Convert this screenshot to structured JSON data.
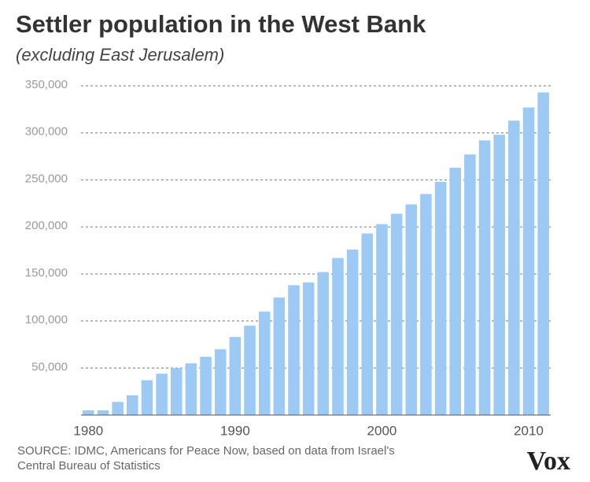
{
  "chart_data": {
    "type": "bar",
    "title": "Settler population in the West Bank",
    "subtitle": "(excluding East Jerusalem)",
    "source": [
      "SOURCE: IDMC, Americans for Peace Now, based on data from Israel's",
      "Central  Bureau of Statistics"
    ],
    "logo": "Vox",
    "x": [
      1980,
      1981,
      1982,
      1983,
      1984,
      1985,
      1986,
      1987,
      1988,
      1989,
      1990,
      1991,
      1992,
      1993,
      1994,
      1995,
      1996,
      1997,
      1998,
      1999,
      2000,
      2001,
      2002,
      2003,
      2004,
      2005,
      2006,
      2007,
      2008,
      2009,
      2010,
      2011
    ],
    "values": [
      5000,
      5000,
      14000,
      21000,
      37000,
      44000,
      50000,
      55000,
      62000,
      70000,
      83000,
      95000,
      110000,
      125000,
      138000,
      141000,
      152000,
      167000,
      176000,
      193000,
      203000,
      214000,
      224000,
      235000,
      248000,
      263000,
      277000,
      292000,
      298000,
      313000,
      327000,
      343000
    ],
    "color": "#9ccaf4",
    "xlim": [
      1979.5,
      2011.5
    ],
    "xticks": [
      1980,
      1990,
      2000,
      2010
    ],
    "ylim": [
      0,
      350000
    ],
    "yticks": [
      {
        "value": 50000,
        "label": "50,000"
      },
      {
        "value": 100000,
        "label": "100,000"
      },
      {
        "value": 150000,
        "label": "150,000"
      },
      {
        "value": 200000,
        "label": "200,000"
      },
      {
        "value": 250000,
        "label": "250,000"
      },
      {
        "value": 300000,
        "label": "300,000"
      },
      {
        "value": 350000,
        "label": "350,000"
      }
    ],
    "grid": true
  }
}
